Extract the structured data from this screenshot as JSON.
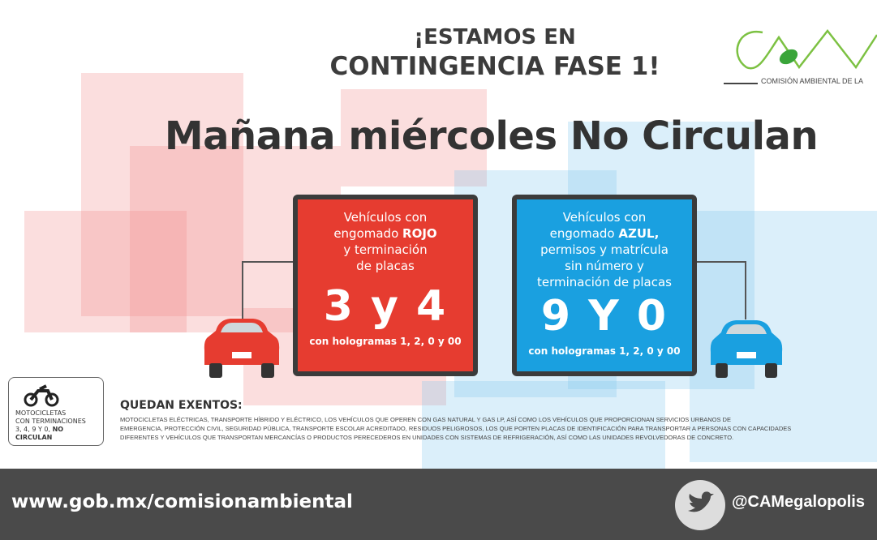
{
  "header": {
    "line1": "¡ESTAMOS EN",
    "line2": "CONTINGENCIA FASE 1!"
  },
  "logo": {
    "text": "COMISIÓN AMBIENTAL DE LA",
    "letters": "CAM"
  },
  "headline": "Mañana miércoles No Circulan",
  "red_card": {
    "text1": "Vehículos con",
    "text2_pre": "engomado ",
    "text2_bold": "ROJO",
    "text3": "y terminación",
    "text4": "de placas",
    "digits": "3 y 4",
    "holograms": "con hologramas 1, 2, 0 y 00",
    "color": "#e63c30"
  },
  "blue_card": {
    "text1": "Vehículos con",
    "text2_pre": "engomado ",
    "text2_bold": "AZUL,",
    "text3": "permisos y matrícula",
    "text4": "sin número y",
    "text5": "terminación de placas",
    "digits": "9 Y 0",
    "holograms": "con hologramas 1, 2, 0 y 00",
    "color": "#1aa0e0"
  },
  "motorcycle_box": {
    "line1": "MOTOCICLETAS",
    "line2": "CON TERMINACIONES",
    "line3_pre": "3, 4, 9 Y 0, ",
    "line3_bold": "NO CIRCULAN"
  },
  "exemptions": {
    "title": "QUEDAN EXENTOS:",
    "lines": [
      "Motocicletas eléctricas, transporte híbrido y eléctrico, los vehículos que operen con gas natural y gas LP, así como los vehículos que proporcionan servicios urbanos de",
      "emergencia, protección civil, seguridad pública, transporte escolar acreditado, residuos peligrosos, los que porten placas de identificación para transportar a personas con capacidades",
      "diferentes y vehículos que transportan mercancías o productos perecederos en unidades con sistemas de refrigeración, así como las unidades revolvedoras de concreto."
    ]
  },
  "footer": {
    "url": "www.gob.mx/comisionambiental",
    "handle": "@CAMegalopolis",
    "icon": "twitter-icon"
  }
}
